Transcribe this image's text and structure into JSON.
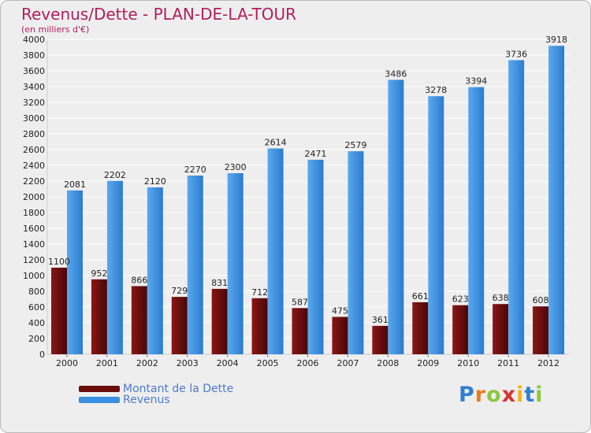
{
  "chart_data": {
    "type": "bar",
    "title": "Revenus/Dette - PLAN-DE-LA-TOUR",
    "subtitle": "(en milliers d'€)",
    "categories": [
      "2000",
      "2001",
      "2002",
      "2003",
      "2004",
      "2005",
      "2006",
      "2007",
      "2008",
      "2009",
      "2010",
      "2011",
      "2012"
    ],
    "series": [
      {
        "name": "Montant de la Dette",
        "color": "#6b0d0d",
        "values": [
          1100,
          952,
          866,
          729,
          831,
          712,
          587,
          475,
          361,
          661,
          623,
          638,
          608
        ]
      },
      {
        "name": "Revenus",
        "color": "#3a8ee0",
        "values": [
          2081,
          2202,
          2120,
          2270,
          2300,
          2614,
          2471,
          2579,
          3486,
          3278,
          3394,
          3736,
          3918
        ]
      }
    ],
    "ylim": [
      0,
      4000
    ],
    "yticks": [
      0,
      200,
      400,
      600,
      800,
      1000,
      1200,
      1400,
      1600,
      1800,
      2000,
      2200,
      2400,
      2600,
      2800,
      3000,
      3200,
      3400,
      3600,
      3800,
      4000
    ],
    "grid": true,
    "legend_position": "bottom-left"
  },
  "brand": {
    "letters": [
      "P",
      "r",
      "o",
      "x",
      "i",
      "t",
      "i"
    ],
    "colors": [
      "#2f7fd0",
      "#e87d1e",
      "#8dc63f",
      "#d9332f",
      "#f2b31b",
      "#2f7fd0",
      "#8dc63f"
    ]
  }
}
